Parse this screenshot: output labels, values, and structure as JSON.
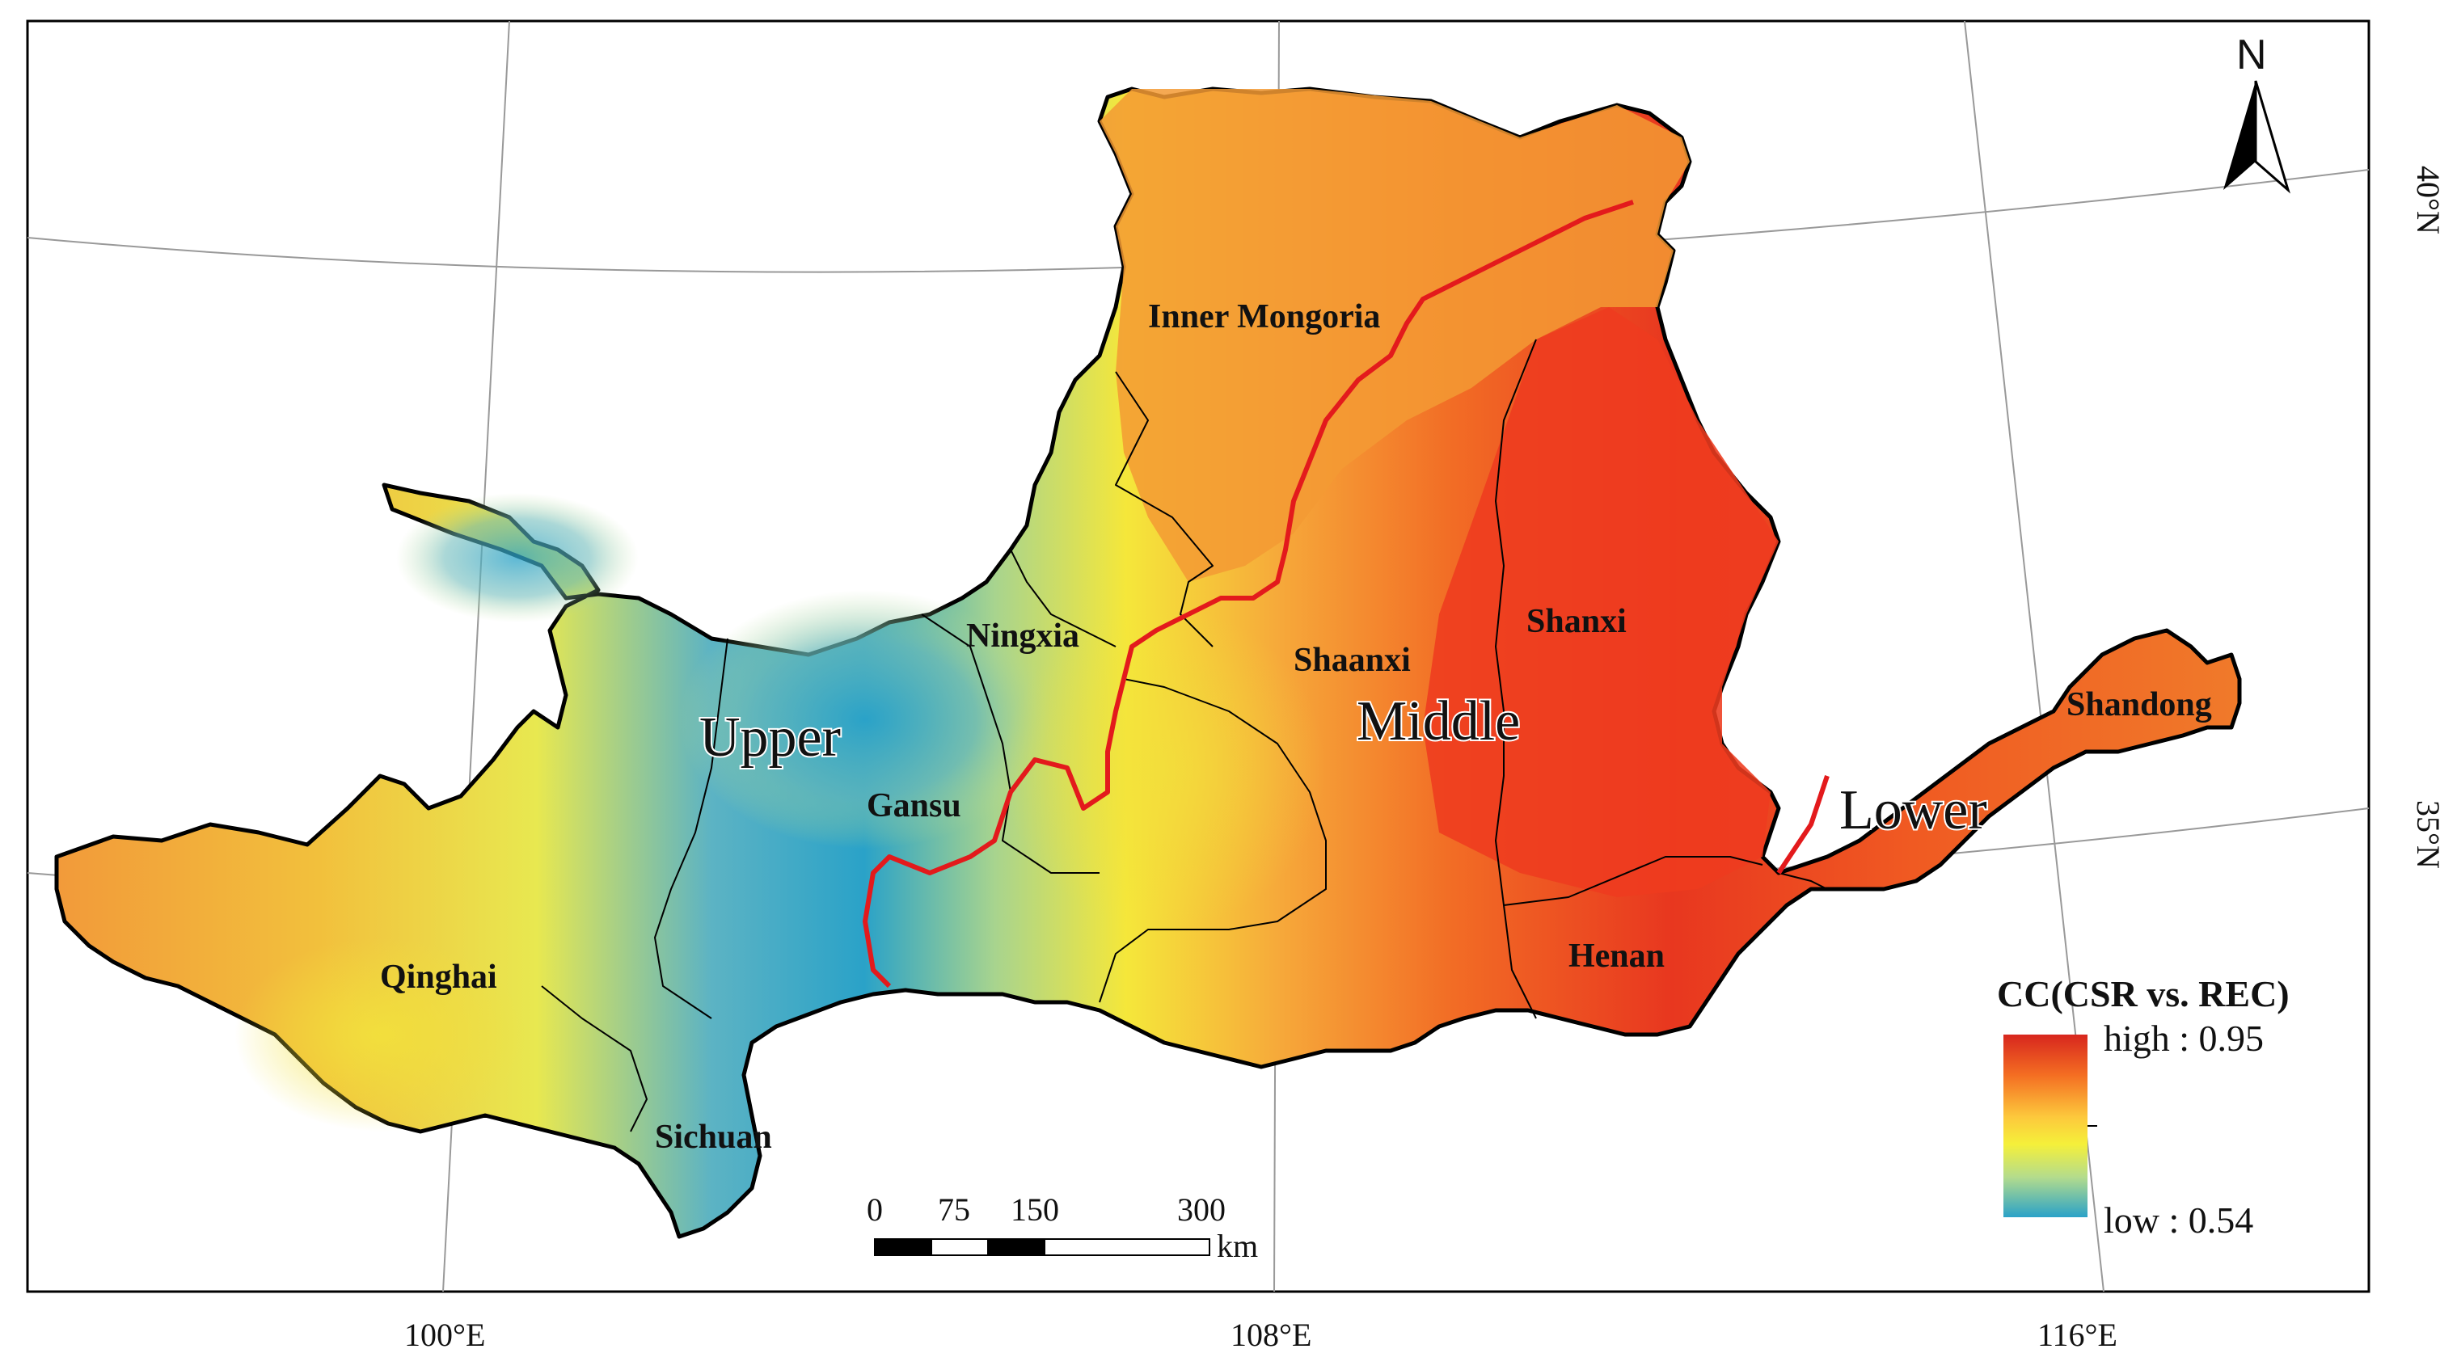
{
  "map": {
    "provinces": [
      "Inner Mongoria",
      "Ningxia",
      "Shaanxi",
      "Shanxi",
      "Gansu",
      "Qinghai",
      "Sichuan",
      "Henan",
      "Shandong"
    ],
    "regions": [
      "Upper",
      "Middle",
      "Lower"
    ],
    "longitude_labels": [
      "100°E",
      "108°E",
      "116°E"
    ],
    "latitude_labels": [
      "40°N",
      "35°N"
    ]
  },
  "legend": {
    "title": "CC(CSR vs. REC)",
    "high_label": "high : 0.95",
    "low_label": "low : 0.54",
    "high_value": 0.95,
    "low_value": 0.54,
    "colors": [
      "#d7261e",
      "#f46d22",
      "#fdae40",
      "#f5f03a",
      "#b4dc8c",
      "#2aa2c8"
    ]
  },
  "scale_bar": {
    "ticks": [
      "0",
      "75",
      "150",
      "300"
    ],
    "unit": "km"
  },
  "north_arrow": {
    "label": "N",
    "icon": "north-arrow-icon"
  }
}
